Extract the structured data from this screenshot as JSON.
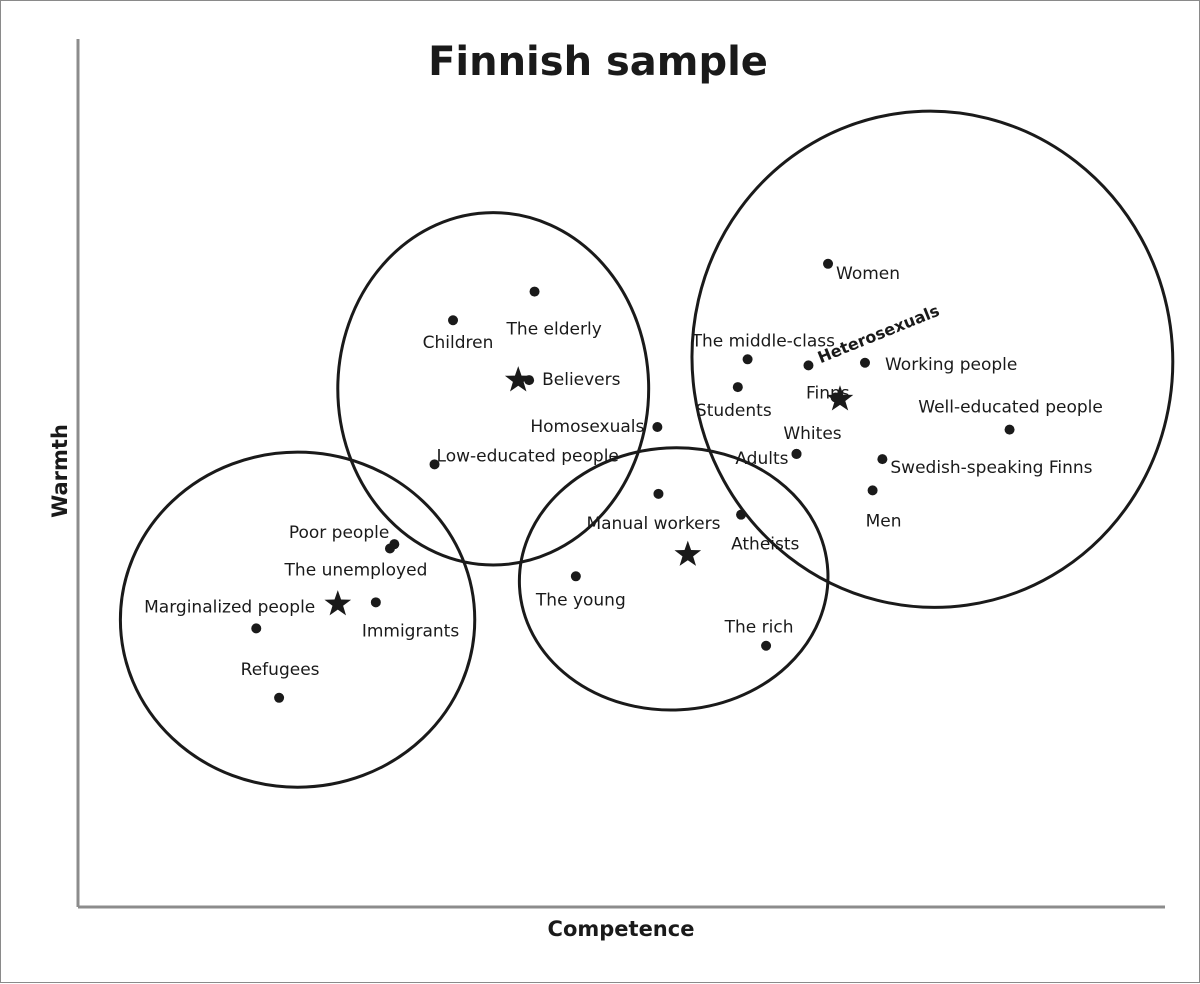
{
  "chart_data": {
    "type": "scatter",
    "title": "Finnish sample",
    "xlabel": "Competence",
    "ylabel": "Warmth",
    "xlim": [
      0,
      100
    ],
    "ylim": [
      0,
      100
    ],
    "grid": false,
    "legend": "none",
    "marker_color": "#1a1a1a",
    "points": [
      {
        "label": "Women",
        "x": 69.0,
        "y": 74.1
      },
      {
        "label": "The elderly",
        "x": 42.0,
        "y": 70.9
      },
      {
        "label": "Children",
        "x": 34.5,
        "y": 67.6
      },
      {
        "label": "Heterosexuals",
        "x": 67.2,
        "y": 62.4
      },
      {
        "label": "Working people",
        "x": 72.4,
        "y": 62.7
      },
      {
        "label": "The middle-class",
        "x": 61.6,
        "y": 63.1
      },
      {
        "label": "Students",
        "x": 60.7,
        "y": 59.9
      },
      {
        "label": "Finns",
        "x": 69.7,
        "y": 58.7
      },
      {
        "label": "Believers",
        "x": 41.5,
        "y": 60.7
      },
      {
        "label": "Homosexuals",
        "x": 53.3,
        "y": 55.3
      },
      {
        "label": "Well-educated people",
        "x": 85.7,
        "y": 55.0
      },
      {
        "label": "Whites",
        "x": 66.1,
        "y": 52.2
      },
      {
        "label": "Adults",
        "x": 66.1,
        "y": 52.2
      },
      {
        "label": "Swedish-speaking Finns",
        "x": 74.0,
        "y": 51.6
      },
      {
        "label": "Low-educated people",
        "x": 32.8,
        "y": 51.0
      },
      {
        "label": "Men",
        "x": 73.1,
        "y": 48.0
      },
      {
        "label": "Manual workers",
        "x": 53.4,
        "y": 47.6
      },
      {
        "label": "Atheists",
        "x": 61.0,
        "y": 45.2
      },
      {
        "label": "Poor people",
        "x": 29.1,
        "y": 41.8
      },
      {
        "label": "The unemployed",
        "x": 28.7,
        "y": 41.3
      },
      {
        "label": "The young",
        "x": 45.8,
        "y": 38.1
      },
      {
        "label": "Immigrants",
        "x": 27.4,
        "y": 35.1
      },
      {
        "label": "Marginalized people",
        "x": 16.4,
        "y": 32.1
      },
      {
        "label": "The rich",
        "x": 63.3,
        "y": 30.1
      },
      {
        "label": "Refugees",
        "x": 18.5,
        "y": 24.1
      }
    ],
    "cluster_centers": [
      {
        "x": 40.5,
        "y": 60.7
      },
      {
        "x": 70.1,
        "y": 58.5
      },
      {
        "x": 56.1,
        "y": 40.6
      },
      {
        "x": 23.9,
        "y": 34.9
      }
    ],
    "clusters": [
      {
        "cx": 38.2,
        "cy": 59.7,
        "rx": 14.3,
        "ry": 20.3
      },
      {
        "cx": 78.6,
        "cy": 63.1,
        "rx": 22.1,
        "ry": 28.6
      },
      {
        "cx": 54.8,
        "cy": 37.8,
        "rx": 14.2,
        "ry": 15.1
      },
      {
        "cx": 20.2,
        "cy": 33.1,
        "rx": 16.3,
        "ry": 19.3
      }
    ]
  }
}
